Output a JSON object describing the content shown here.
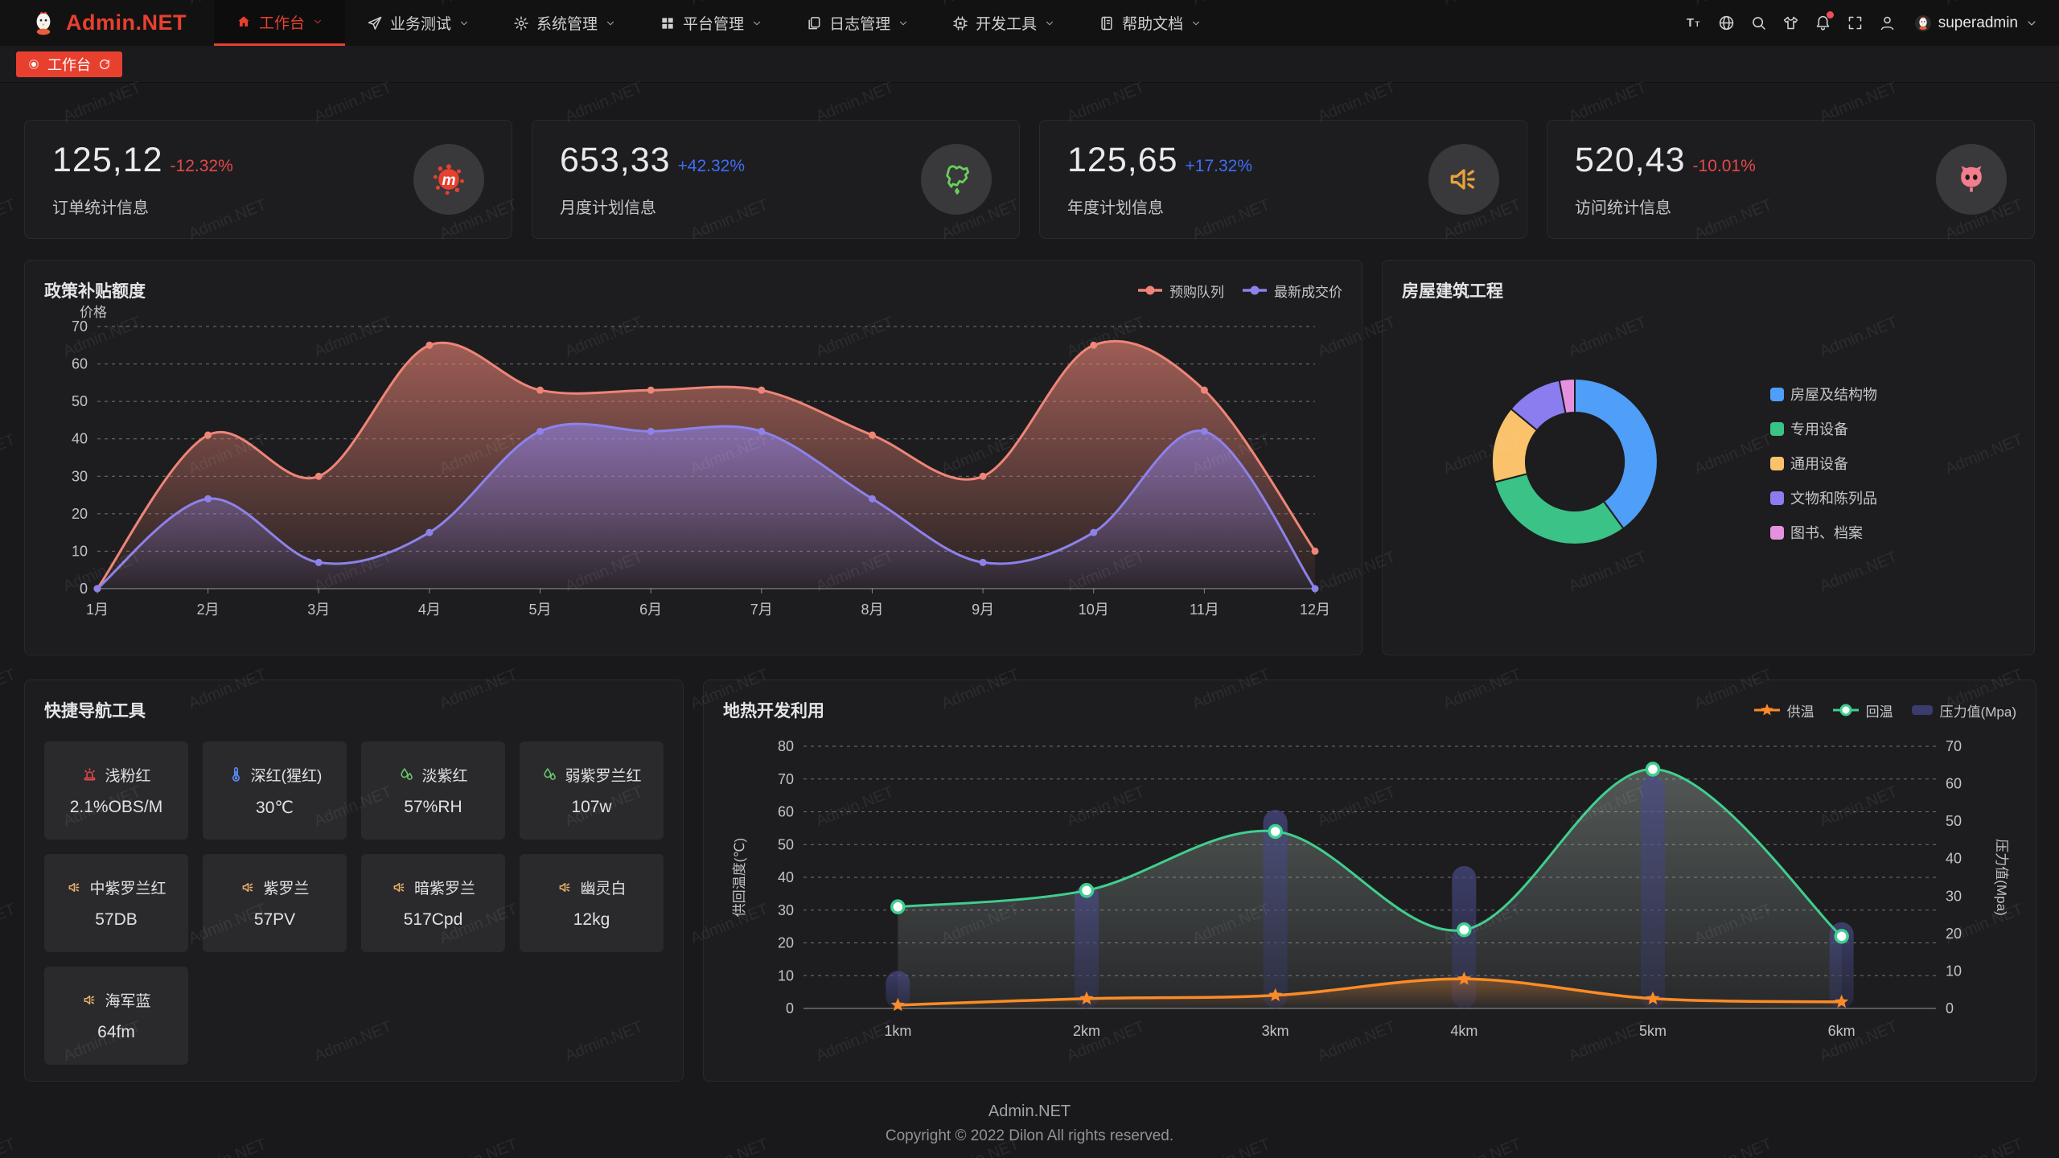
{
  "navbar": {
    "logo_text": "Admin.NET",
    "menu": [
      {
        "label": "工作台",
        "icon": "home-icon",
        "active": true
      },
      {
        "label": "业务测试",
        "icon": "send-icon",
        "active": false
      },
      {
        "label": "系统管理",
        "icon": "gear-icon",
        "active": false
      },
      {
        "label": "平台管理",
        "icon": "grid-icon",
        "active": false
      },
      {
        "label": "日志管理",
        "icon": "log-icon",
        "active": false
      },
      {
        "label": "开发工具",
        "icon": "cpu-icon",
        "active": false
      },
      {
        "label": "帮助文档",
        "icon": "docs-icon",
        "active": false
      }
    ],
    "tools": [
      {
        "name": "font-size-icon"
      },
      {
        "name": "language-icon"
      },
      {
        "name": "search-icon"
      },
      {
        "name": "theme-icon"
      },
      {
        "name": "notification-icon",
        "badge": true
      },
      {
        "name": "fullscreen-icon"
      },
      {
        "name": "profile-icon"
      }
    ],
    "user": {
      "name": "superadmin"
    }
  },
  "tabbar": {
    "tabs": [
      {
        "label": "工作台",
        "active": true
      }
    ]
  },
  "stats": [
    {
      "value": "125,12",
      "delta": "-12.32%",
      "trend": "down",
      "label": "订单统计信息",
      "icon": "meetup-splat-icon"
    },
    {
      "value": "653,33",
      "delta": "+42.32%",
      "trend": "up",
      "label": "月度计划信息",
      "icon": "china-map-icon"
    },
    {
      "value": "125,65",
      "delta": "+17.32%",
      "trend": "up",
      "label": "年度计划信息",
      "icon": "speaker-icon"
    },
    {
      "value": "520,43",
      "delta": "-10.01%",
      "trend": "down",
      "label": "访问统计信息",
      "icon": "octocat-icon"
    }
  ],
  "chart_data": [
    {
      "id": "policy-subsidy",
      "type": "line",
      "title": "政策补贴额度",
      "ylabel": "价格",
      "categories": [
        "1月",
        "2月",
        "3月",
        "4月",
        "5月",
        "6月",
        "7月",
        "8月",
        "9月",
        "10月",
        "11月",
        "12月"
      ],
      "series": [
        {
          "name": "预购队列",
          "color": "#ee8577",
          "values": [
            0,
            41,
            30,
            65,
            53,
            53,
            53,
            41,
            30,
            65,
            53,
            10
          ]
        },
        {
          "name": "最新成交价",
          "color": "#8d82ea",
          "values": [
            0,
            24,
            7,
            15,
            42,
            42,
            42,
            24,
            7,
            15,
            42,
            0
          ]
        }
      ],
      "ylim": [
        0,
        70
      ],
      "ytick": 10,
      "grid": "dashed",
      "legend_position": "top-right",
      "smooth": true
    },
    {
      "id": "housing",
      "type": "pie",
      "title": "房屋建筑工程",
      "slices": [
        {
          "label": "房屋及结构物",
          "value": 40,
          "color": "#4f9ef7"
        },
        {
          "label": "专用设备",
          "value": 31,
          "color": "#3ac287"
        },
        {
          "label": "通用设备",
          "value": 15,
          "color": "#f9c26b"
        },
        {
          "label": "文物和陈列品",
          "value": 11,
          "color": "#8b7cf0"
        },
        {
          "label": "图书、档案",
          "value": 3,
          "color": "#e591e0"
        }
      ],
      "donut": true,
      "legend_position": "right"
    },
    {
      "id": "geothermal",
      "type": "mixed-line-bar",
      "title": "地热开发利用",
      "categories": [
        "1km",
        "2km",
        "3km",
        "4km",
        "5km",
        "6km"
      ],
      "left_axis": {
        "name": "供回温度(℃)",
        "range": [
          0,
          80
        ],
        "tick": 10
      },
      "right_axis": {
        "name": "压力值(Mpa)",
        "range": [
          0,
          70
        ],
        "tick": 10
      },
      "series": [
        {
          "name": "供温",
          "type": "line",
          "marker": "star",
          "color": "#fb8b28",
          "axis": "left",
          "values": [
            1,
            3,
            4,
            9,
            3,
            2
          ]
        },
        {
          "name": "回温",
          "type": "line",
          "marker": "circle",
          "color": "#3fcf8e",
          "axis": "left",
          "values": [
            31,
            36,
            54,
            24,
            73,
            22
          ]
        },
        {
          "name": "压力值(Mpa)",
          "type": "bar",
          "color": "#45477e",
          "axis": "right",
          "values": [
            10,
            33,
            53,
            38,
            62,
            23
          ]
        }
      ],
      "grid": "dashed",
      "legend_position": "top-right",
      "smooth": true
    }
  ],
  "quicknav": {
    "title": "快捷导航工具",
    "items": [
      {
        "name": "浅粉红",
        "value": "2.1%OBS/M",
        "icon": "siren-icon",
        "icon_color": "#e5484d"
      },
      {
        "name": "深红(猩红)",
        "value": "30℃",
        "icon": "thermometer-icon",
        "icon_color": "#5d8af5"
      },
      {
        "name": "淡紫红",
        "value": "57%RH",
        "icon": "humidity-icon",
        "icon_color": "#6dc56d"
      },
      {
        "name": "弱紫罗兰红",
        "value": "107w",
        "icon": "humidity-icon",
        "icon_color": "#6dc56d"
      },
      {
        "name": "中紫罗兰红",
        "value": "57DB",
        "icon": "volume-icon",
        "icon_color": "#e9b06c"
      },
      {
        "name": "紫罗兰",
        "value": "57PV",
        "icon": "volume-icon",
        "icon_color": "#e9b06c"
      },
      {
        "name": "暗紫罗兰",
        "value": "517Cpd",
        "icon": "volume-icon",
        "icon_color": "#e9b06c"
      },
      {
        "name": "幽灵白",
        "value": "12kg",
        "icon": "volume-icon",
        "icon_color": "#e9b06c"
      },
      {
        "name": "海军蓝",
        "value": "64fm",
        "icon": "volume-icon",
        "icon_color": "#e9b06c"
      }
    ]
  },
  "footer": {
    "line1": "Admin.NET",
    "line2": "Copyright © 2022 Dilon All rights reserved."
  },
  "watermark": {
    "text": "Admin.NET"
  },
  "colors": {
    "accent": "#e8402f",
    "delta_up": "#3f6df4",
    "delta_down": "#e5484d",
    "panel_bg": "#1d1d1f",
    "page_bg": "#19191b"
  }
}
